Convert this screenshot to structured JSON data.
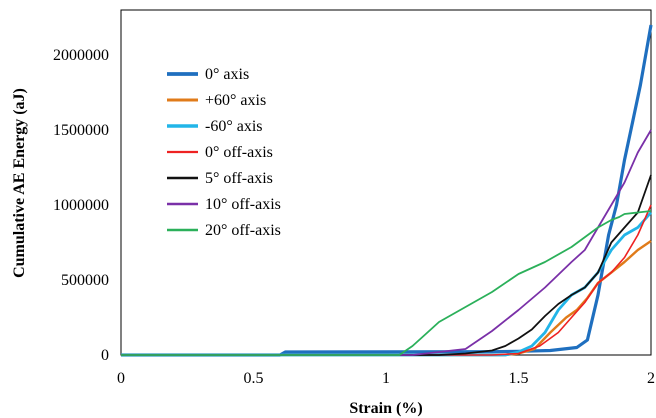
{
  "chart_data": {
    "type": "line",
    "title": "",
    "xlabel": "Strain (%)",
    "ylabel": "Cumulative AE Energy (aJ)",
    "xlim": [
      0,
      2
    ],
    "ylim": [
      0,
      2300000
    ],
    "xticks": [
      0,
      0.5,
      1,
      1.5,
      2
    ],
    "xtick_labels": [
      "0",
      "0.5",
      "1",
      "1.5",
      "2"
    ],
    "yticks": [
      0,
      500000,
      1000000,
      1500000,
      2000000
    ],
    "ytick_labels": [
      "0",
      "500000",
      "1000000",
      "1500000",
      "2000000"
    ],
    "grid": false,
    "legend_position": "upper-left",
    "series": [
      {
        "name": "0° axis",
        "color": "#1f6fbf",
        "width": 3.2,
        "x": [
          0,
          0.6,
          0.62,
          1.4,
          1.5,
          1.62,
          1.72,
          1.76,
          1.8,
          1.84,
          1.87,
          1.9,
          1.93,
          1.96,
          1.98,
          2.0
        ],
        "y": [
          0,
          0,
          20000,
          22000,
          25000,
          30000,
          50000,
          100000,
          400000,
          800000,
          1000000,
          1300000,
          1550000,
          1800000,
          2000000,
          2200000
        ]
      },
      {
        "name": "+60° axis",
        "color": "#e07b1a",
        "width": 2.4,
        "x": [
          0,
          1.45,
          1.5,
          1.56,
          1.62,
          1.68,
          1.72,
          1.76,
          1.8,
          1.85,
          1.9,
          1.95,
          2.0
        ],
        "y": [
          0,
          0,
          10000,
          40000,
          150000,
          250000,
          300000,
          380000,
          480000,
          550000,
          620000,
          700000,
          760000
        ]
      },
      {
        "name": "-60° axis",
        "color": "#22b5e8",
        "width": 2.8,
        "x": [
          0,
          1.45,
          1.5,
          1.55,
          1.6,
          1.65,
          1.7,
          1.75,
          1.8,
          1.85,
          1.9,
          1.95,
          2.0
        ],
        "y": [
          0,
          0,
          20000,
          60000,
          150000,
          300000,
          400000,
          450000,
          550000,
          700000,
          800000,
          850000,
          950000
        ]
      },
      {
        "name": "0° off-axis",
        "color": "#ee2222",
        "width": 1.6,
        "x": [
          0,
          1.4,
          1.5,
          1.58,
          1.65,
          1.7,
          1.75,
          1.8,
          1.85,
          1.9,
          1.95,
          2.0
        ],
        "y": [
          0,
          0,
          10000,
          60000,
          150000,
          250000,
          350000,
          480000,
          550000,
          650000,
          800000,
          1000000
        ]
      },
      {
        "name": "5° off-axis",
        "color": "#111111",
        "width": 1.8,
        "x": [
          0,
          1.2,
          1.3,
          1.4,
          1.45,
          1.5,
          1.55,
          1.6,
          1.65,
          1.7,
          1.75,
          1.8,
          1.85,
          1.9,
          1.95,
          2.0
        ],
        "y": [
          0,
          0,
          10000,
          30000,
          60000,
          110000,
          170000,
          260000,
          340000,
          400000,
          450000,
          550000,
          750000,
          850000,
          950000,
          1200000
        ]
      },
      {
        "name": "10° off-axis",
        "color": "#7a30a8",
        "width": 1.8,
        "x": [
          0,
          1.1,
          1.2,
          1.3,
          1.4,
          1.5,
          1.6,
          1.7,
          1.75,
          1.8,
          1.85,
          1.9,
          1.95,
          2.0
        ],
        "y": [
          0,
          0,
          20000,
          40000,
          160000,
          300000,
          450000,
          620000,
          700000,
          850000,
          1000000,
          1150000,
          1350000,
          1500000
        ]
      },
      {
        "name": "20° off-axis",
        "color": "#2bb05a",
        "width": 1.8,
        "x": [
          0,
          1.05,
          1.1,
          1.15,
          1.2,
          1.3,
          1.4,
          1.5,
          1.6,
          1.7,
          1.8,
          1.85,
          1.88,
          1.9,
          1.95,
          2.0
        ],
        "y": [
          0,
          0,
          60000,
          140000,
          220000,
          320000,
          420000,
          540000,
          620000,
          720000,
          850000,
          900000,
          920000,
          940000,
          950000,
          960000
        ]
      }
    ]
  }
}
